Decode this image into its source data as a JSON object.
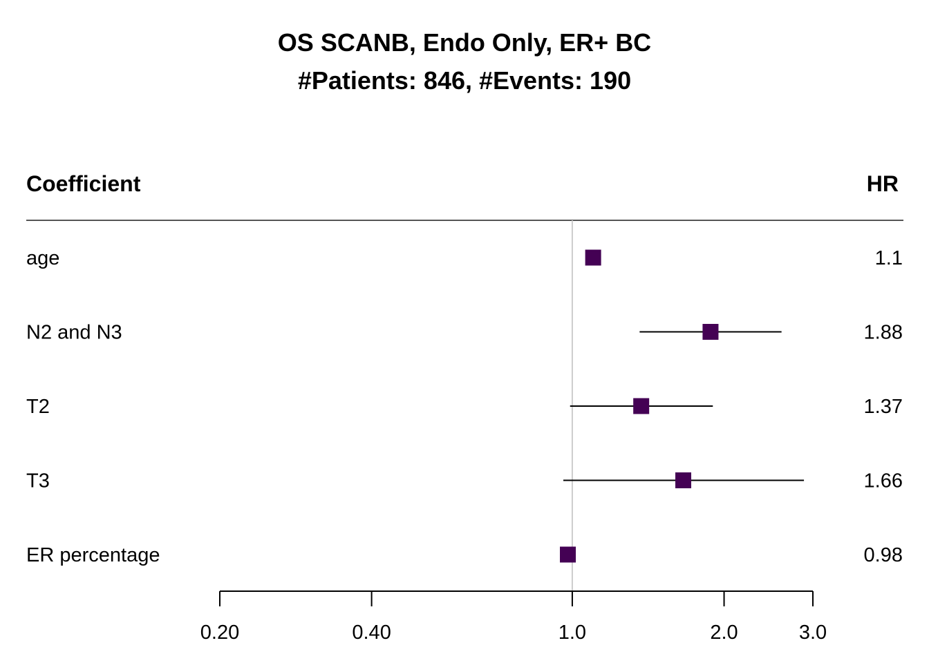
{
  "chart_data": {
    "type": "forest",
    "title": "OS SCANB, Endo Only, ER+ BC",
    "subtitle": "#Patients: 846, #Events: 190",
    "column_headers": {
      "label": "Coefficient",
      "value": "HR"
    },
    "scale": "log",
    "xlim": [
      0.2,
      3.0
    ],
    "reference_line": 1.0,
    "ticks": [
      0.2,
      0.4,
      1.0,
      2.0,
      3.0
    ],
    "tick_labels": [
      "0.20",
      "0.40",
      "1.0",
      "2.0",
      "3.0"
    ],
    "marker_color": "#440154",
    "rows": [
      {
        "label": "age",
        "hr": 1.1,
        "hr_text": "1.1",
        "lower": null,
        "upper": null
      },
      {
        "label": "N2 and N3",
        "hr": 1.88,
        "hr_text": "1.88",
        "lower": 1.36,
        "upper": 2.6
      },
      {
        "label": "T2",
        "hr": 1.37,
        "hr_text": "1.37",
        "lower": 0.99,
        "upper": 1.9
      },
      {
        "label": "T3",
        "hr": 1.66,
        "hr_text": "1.66",
        "lower": 0.96,
        "upper": 2.88
      },
      {
        "label": "ER percentage",
        "hr": 0.98,
        "hr_text": "0.98",
        "lower": null,
        "upper": null
      }
    ]
  }
}
